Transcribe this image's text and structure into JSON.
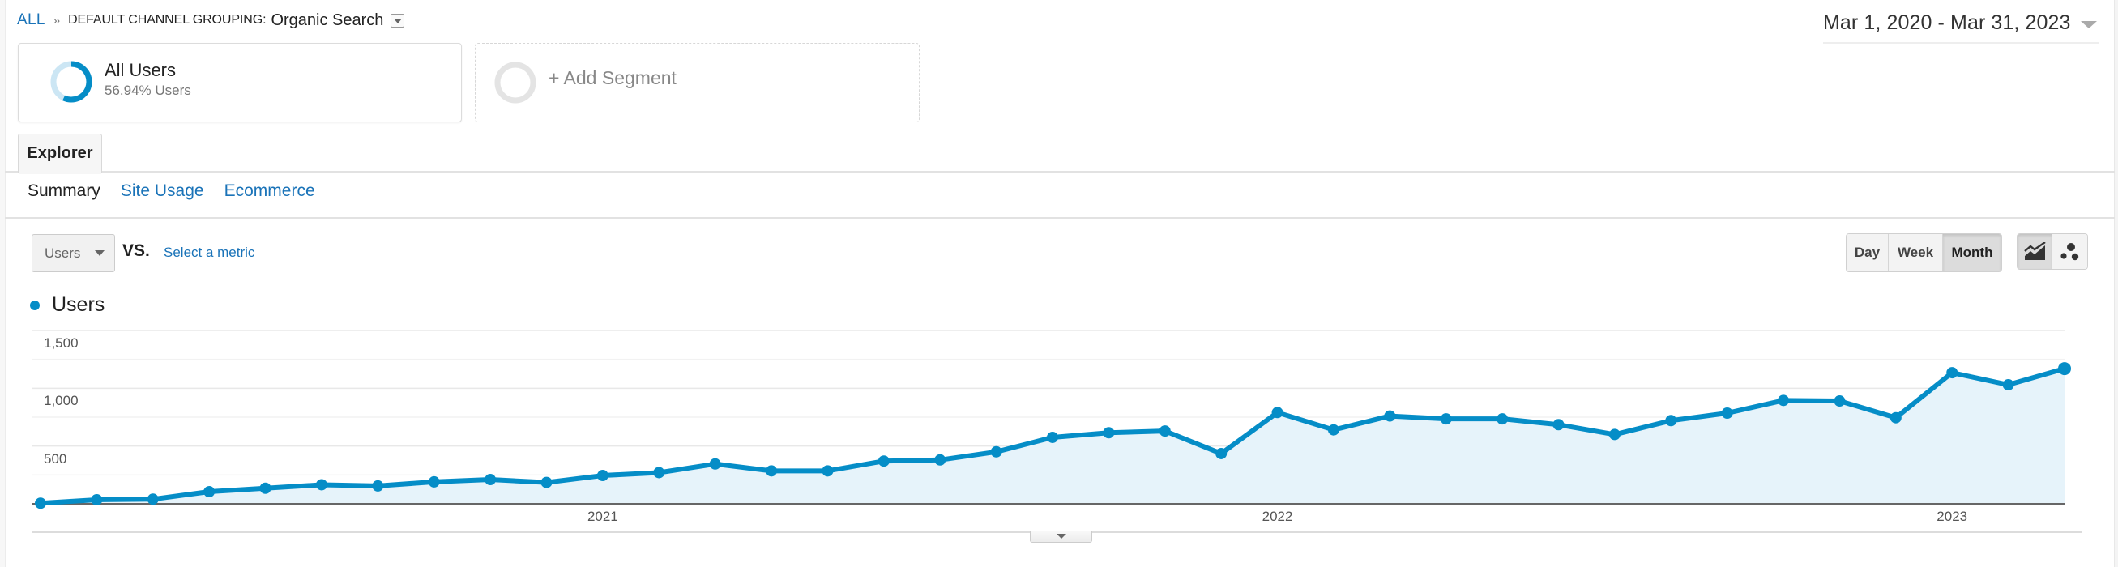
{
  "breadcrumb": {
    "root": "ALL",
    "separator": "»",
    "dimension_label": "DEFAULT CHANNEL GROUPING:",
    "dimension_value": "Organic Search"
  },
  "date_range": {
    "label": "Mar 1, 2020 - Mar 31, 2023"
  },
  "segments": {
    "active": {
      "name": "All Users",
      "subtitle": "56.94% Users",
      "percent": 56.94
    },
    "add_label": "+ Add Segment"
  },
  "tabs": {
    "main": "Explorer",
    "sub": [
      {
        "label": "Summary",
        "active": true
      },
      {
        "label": "Site Usage",
        "active": false
      },
      {
        "label": "Ecommerce",
        "active": false
      }
    ]
  },
  "metric_controls": {
    "primary_metric": "Users",
    "vs_label": "VS.",
    "secondary_placeholder": "Select a metric"
  },
  "period_buttons": [
    {
      "label": "Day",
      "active": false
    },
    {
      "label": "Week",
      "active": false
    },
    {
      "label": "Month",
      "active": true
    }
  ],
  "chart_type_buttons": [
    {
      "icon": "line-chart-icon",
      "active": true
    },
    {
      "icon": "motion-chart-icon",
      "active": false
    }
  ],
  "colors": {
    "accent": "#058dc7",
    "area_fill": "#e6f3fa",
    "link": "#1a73b8"
  },
  "chart_data": {
    "type": "area",
    "title": "Users",
    "legend": [
      "Users"
    ],
    "legend_position": "top-left",
    "xlabel": "",
    "ylabel": "",
    "ylim": [
      0,
      1500
    ],
    "y_ticks": [
      "500",
      "1,000",
      "1,500"
    ],
    "x_tick_labels": [
      {
        "label": "2021",
        "index": 10
      },
      {
        "label": "2022",
        "index": 22
      },
      {
        "label": "2023",
        "index": 34
      }
    ],
    "grid": true,
    "granularity": "month",
    "x": [
      "2020-03",
      "2020-04",
      "2020-05",
      "2020-06",
      "2020-07",
      "2020-08",
      "2020-09",
      "2020-10",
      "2020-11",
      "2020-12",
      "2021-01",
      "2021-02",
      "2021-03",
      "2021-04",
      "2021-05",
      "2021-06",
      "2021-07",
      "2021-08",
      "2021-09",
      "2021-10",
      "2021-11",
      "2021-12",
      "2022-01",
      "2022-02",
      "2022-03",
      "2022-04",
      "2022-05",
      "2022-06",
      "2022-07",
      "2022-08",
      "2022-09",
      "2022-10",
      "2022-11",
      "2022-12",
      "2023-01",
      "2023-02",
      "2023-03"
    ],
    "series": [
      {
        "name": "Users",
        "values": [
          5,
          35,
          40,
          105,
          135,
          165,
          155,
          190,
          210,
          185,
          245,
          270,
          345,
          285,
          285,
          370,
          380,
          450,
          575,
          615,
          630,
          435,
          790,
          640,
          760,
          735,
          735,
          685,
          600,
          720,
          785,
          895,
          890,
          745,
          1135,
          1030,
          1170
        ]
      }
    ]
  }
}
